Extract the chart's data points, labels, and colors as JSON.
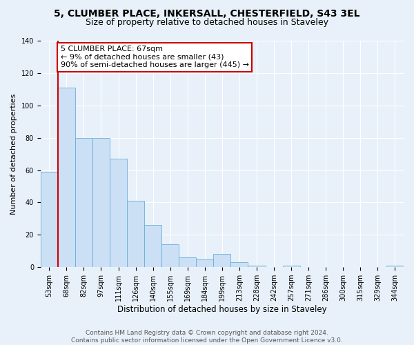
{
  "title1": "5, CLUMBER PLACE, INKERSALL, CHESTERFIELD, S43 3EL",
  "title2": "Size of property relative to detached houses in Staveley",
  "xlabel": "Distribution of detached houses by size in Staveley",
  "ylabel": "Number of detached properties",
  "bar_labels": [
    "53sqm",
    "68sqm",
    "82sqm",
    "97sqm",
    "111sqm",
    "126sqm",
    "140sqm",
    "155sqm",
    "169sqm",
    "184sqm",
    "199sqm",
    "213sqm",
    "228sqm",
    "242sqm",
    "257sqm",
    "271sqm",
    "286sqm",
    "300sqm",
    "315sqm",
    "329sqm",
    "344sqm"
  ],
  "bar_heights": [
    59,
    111,
    80,
    80,
    67,
    41,
    26,
    14,
    6,
    5,
    8,
    3,
    1,
    0,
    1,
    0,
    0,
    0,
    0,
    0,
    1
  ],
  "bar_color": "#cce0f5",
  "bar_edge_color": "#6aaed6",
  "vline_x_index": 1,
  "vline_color": "#cc0000",
  "annotation_line1": "5 CLUMBER PLACE: 67sqm",
  "annotation_line2": "← 9% of detached houses are smaller (43)",
  "annotation_line3": "90% of semi-detached houses are larger (445) →",
  "annotation_box_edge": "#cc0000",
  "ylim": [
    0,
    140
  ],
  "yticks": [
    0,
    20,
    40,
    60,
    80,
    100,
    120,
    140
  ],
  "bg_color": "#e8f1fa",
  "plot_bg_color": "#e8f1fa",
  "footer_text": "Contains HM Land Registry data © Crown copyright and database right 2024.\nContains public sector information licensed under the Open Government Licence v3.0.",
  "title1_fontsize": 10,
  "title2_fontsize": 9,
  "xlabel_fontsize": 8.5,
  "ylabel_fontsize": 8,
  "tick_fontsize": 7,
  "annotation_fontsize": 8,
  "footer_fontsize": 6.5
}
